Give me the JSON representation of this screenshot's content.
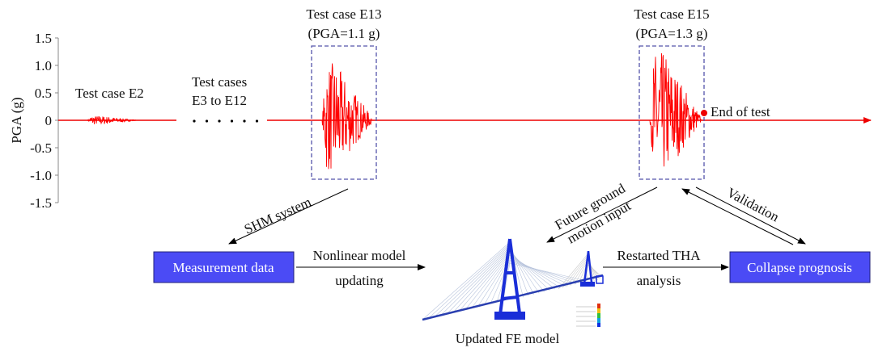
{
  "axis": {
    "ylabel": "PGA (g)",
    "ticks": [
      "1.5",
      "1.0",
      "0.5",
      "0",
      "-0.5",
      "-1.0",
      "-1.5"
    ]
  },
  "timeline": {
    "e2_label": "Test case E2",
    "e3_e12_label_line1": "Test cases",
    "e3_e12_label_line2": "E3 to E12",
    "e13_label_line1": "Test case E13",
    "e13_label_line2": "(PGA=1.1 g)",
    "e15_label_line1": "Test case E15",
    "e15_label_line2": "(PGA=1.3 g)",
    "end_label": "End of test",
    "signal_color": "#ff0000",
    "box_color": "#5555aa"
  },
  "flow": {
    "shm_label": "SHM system",
    "future_line1": "Future ground",
    "future_line2": "motion input",
    "validation_label": "Validation",
    "measurement_box": "Measurement data",
    "nonlinear_line1": "Nonlinear model",
    "nonlinear_line2": "updating",
    "restarted_line1": "Restarted THA",
    "restarted_line2": "analysis",
    "collapse_box": "Collapse prognosis",
    "fe_model_caption": "Updated FE model",
    "box_fill": "#4b4bf5"
  }
}
